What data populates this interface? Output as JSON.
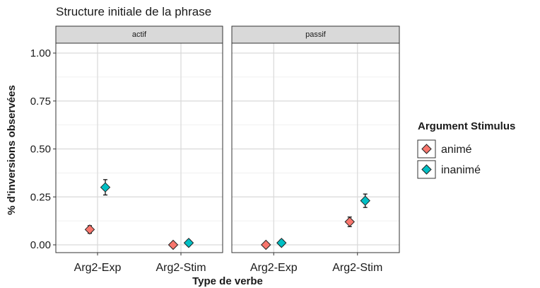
{
  "chart_data": {
    "type": "scatter",
    "title": "Structure initiale de la phrase",
    "xlabel": "Type de verbe",
    "ylabel": "% d'inversions observées",
    "ylim": [
      -0.035,
      1.07
    ],
    "y_ticks": [
      0.0,
      0.25,
      0.5,
      0.75,
      1.0
    ],
    "y_tick_labels": [
      "0.00",
      "0.25",
      "0.50",
      "0.75",
      "1.00"
    ],
    "categories": [
      "Arg2-Exp",
      "Arg2-Stim"
    ],
    "facets": [
      "actif",
      "passif"
    ],
    "grid": true,
    "legend_position": "right",
    "legend_title": "Argument Stimulus",
    "series": [
      {
        "name": "animé",
        "color": "#F8766D",
        "values": {
          "actif": [
            0.08,
            0.0
          ],
          "passif": [
            0.0,
            0.12
          ]
        },
        "errors": {
          "actif": [
            [
              0.06,
              0.1
            ],
            [
              -0.005,
              0.005
            ]
          ],
          "passif": [
            [
              -0.005,
              0.005
            ],
            [
              0.095,
              0.145
            ]
          ]
        }
      },
      {
        "name": "inanimé",
        "color": "#00BFC4",
        "values": {
          "actif": [
            0.3,
            0.01
          ],
          "passif": [
            0.01,
            0.23
          ]
        },
        "errors": {
          "actif": [
            [
              0.26,
              0.34
            ],
            [
              -0.005,
              0.025
            ]
          ],
          "passif": [
            [
              -0.005,
              0.025
            ],
            [
              0.195,
              0.265
            ]
          ]
        }
      }
    ]
  }
}
